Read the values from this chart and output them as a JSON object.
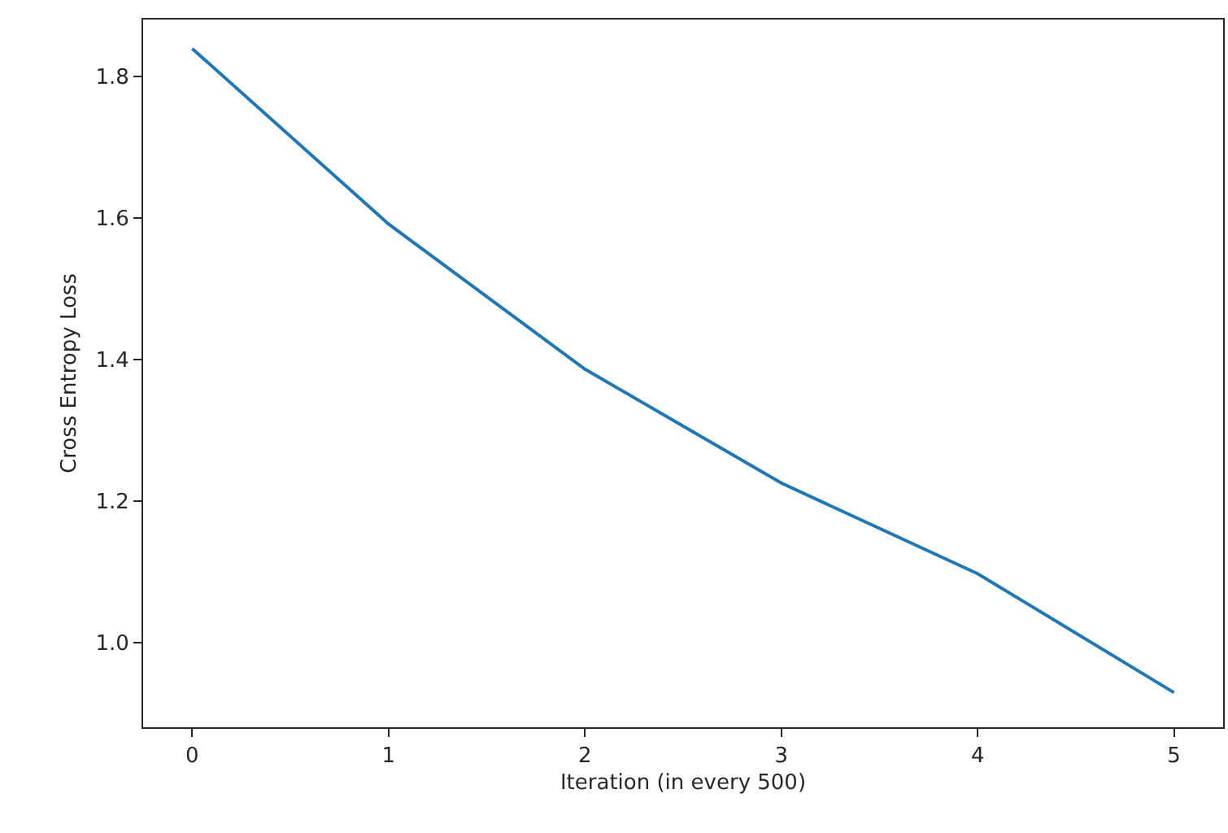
{
  "chart_data": {
    "type": "line",
    "xlabel": "Iteration (in every 500)",
    "ylabel": "Cross Entropy Loss",
    "x": [
      0,
      1,
      2,
      3,
      4,
      5
    ],
    "series": [
      {
        "color": "#1f77b4",
        "values": [
          1.839,
          1.591,
          1.386,
          1.225,
          1.097,
          0.929
        ]
      }
    ],
    "xlim": [
      -0.25,
      5.25
    ],
    "xticks": [
      0,
      1,
      2,
      3,
      4,
      5
    ],
    "ylim": [
      0.88,
      1.88
    ],
    "yticks": [
      {
        "value": 1.0,
        "label": "1.0"
      },
      {
        "value": 1.2,
        "label": "1.2"
      },
      {
        "value": 1.4,
        "label": "1.4"
      },
      {
        "value": 1.6,
        "label": "1.6"
      },
      {
        "value": 1.8,
        "label": "1.8"
      }
    ],
    "marker": "none",
    "line_style": "solid"
  }
}
